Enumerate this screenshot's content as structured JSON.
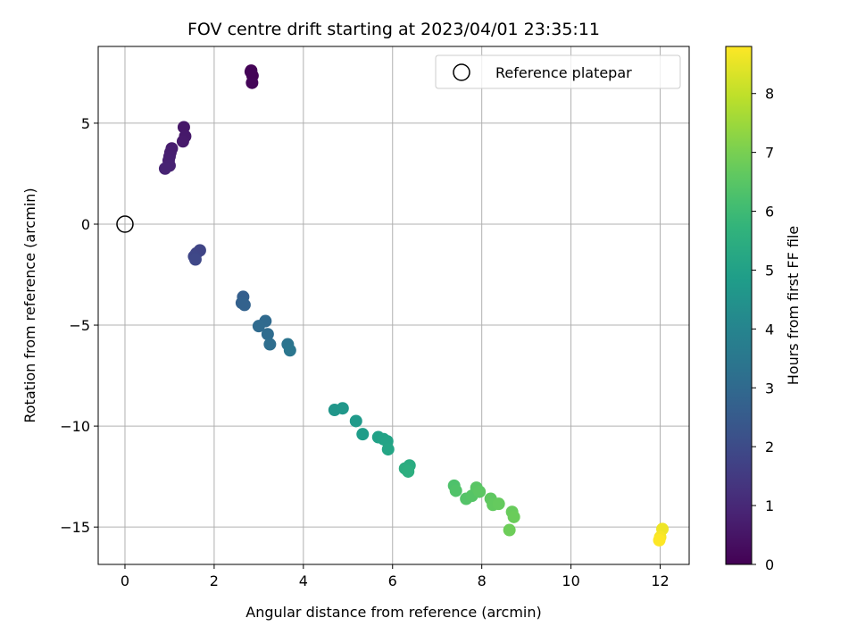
{
  "chart_data": {
    "type": "scatter",
    "title": "FOV centre drift starting at 2023/04/01 23:35:11",
    "xlabel": "Angular distance from reference (arcmin)",
    "ylabel": "Rotation from reference (arcmin)",
    "xlim": [
      -0.6,
      12.65
    ],
    "ylim": [
      -16.85,
      8.8
    ],
    "xticks": [
      0,
      2,
      4,
      6,
      8,
      10,
      12
    ],
    "yticks": [
      -15,
      -10,
      -5,
      0,
      5
    ],
    "grid": true,
    "legend": {
      "position": "upper right",
      "entries": [
        "Reference platepar"
      ]
    },
    "reference_point": {
      "label": "Reference platepar",
      "x": 0,
      "y": 0
    },
    "colorbar": {
      "label": "Hours from first FF file",
      "colormap": "viridis",
      "range": [
        0,
        8.8
      ],
      "ticks": [
        0,
        1,
        2,
        3,
        4,
        5,
        6,
        7,
        8
      ]
    },
    "points": [
      {
        "x": 2.83,
        "y": 7.6,
        "c": 0.0
      },
      {
        "x": 2.86,
        "y": 7.35,
        "c": 0.05
      },
      {
        "x": 2.85,
        "y": 7.0,
        "c": 0.1
      },
      {
        "x": 2.82,
        "y": 7.55,
        "c": 0.08
      },
      {
        "x": 1.32,
        "y": 4.8,
        "c": 0.55
      },
      {
        "x": 1.35,
        "y": 4.35,
        "c": 0.6
      },
      {
        "x": 1.3,
        "y": 4.1,
        "c": 0.62
      },
      {
        "x": 1.05,
        "y": 3.75,
        "c": 0.7
      },
      {
        "x": 1.02,
        "y": 3.55,
        "c": 0.72
      },
      {
        "x": 1.0,
        "y": 3.35,
        "c": 0.75
      },
      {
        "x": 0.98,
        "y": 3.15,
        "c": 0.78
      },
      {
        "x": 1.0,
        "y": 2.9,
        "c": 0.82
      },
      {
        "x": 0.9,
        "y": 2.75,
        "c": 0.85
      },
      {
        "x": 1.6,
        "y": -1.45,
        "c": 1.75
      },
      {
        "x": 1.68,
        "y": -1.3,
        "c": 1.8
      },
      {
        "x": 1.55,
        "y": -1.6,
        "c": 1.85
      },
      {
        "x": 1.58,
        "y": -1.75,
        "c": 1.9
      },
      {
        "x": 2.65,
        "y": -3.6,
        "c": 2.65
      },
      {
        "x": 2.62,
        "y": -3.9,
        "c": 2.7
      },
      {
        "x": 2.68,
        "y": -4.0,
        "c": 2.75
      },
      {
        "x": 3.15,
        "y": -4.8,
        "c": 3.0
      },
      {
        "x": 3.0,
        "y": -5.05,
        "c": 3.05
      },
      {
        "x": 3.2,
        "y": -5.45,
        "c": 3.1
      },
      {
        "x": 3.25,
        "y": -5.95,
        "c": 3.15
      },
      {
        "x": 3.65,
        "y": -5.95,
        "c": 3.4
      },
      {
        "x": 3.7,
        "y": -6.25,
        "c": 3.45
      },
      {
        "x": 4.7,
        "y": -9.2,
        "c": 4.6
      },
      {
        "x": 4.88,
        "y": -9.12,
        "c": 4.65
      },
      {
        "x": 5.18,
        "y": -9.75,
        "c": 4.75
      },
      {
        "x": 5.33,
        "y": -10.4,
        "c": 4.85
      },
      {
        "x": 5.68,
        "y": -10.55,
        "c": 5.0
      },
      {
        "x": 5.8,
        "y": -10.65,
        "c": 5.05
      },
      {
        "x": 5.88,
        "y": -10.75,
        "c": 5.1
      },
      {
        "x": 5.9,
        "y": -11.15,
        "c": 5.15
      },
      {
        "x": 6.38,
        "y": -11.95,
        "c": 5.4
      },
      {
        "x": 6.28,
        "y": -12.1,
        "c": 5.45
      },
      {
        "x": 6.35,
        "y": -12.25,
        "c": 5.5
      },
      {
        "x": 7.38,
        "y": -12.95,
        "c": 6.3
      },
      {
        "x": 7.42,
        "y": -13.2,
        "c": 6.35
      },
      {
        "x": 7.65,
        "y": -13.6,
        "c": 6.4
      },
      {
        "x": 7.78,
        "y": -13.45,
        "c": 6.45
      },
      {
        "x": 7.88,
        "y": -13.05,
        "c": 6.5
      },
      {
        "x": 7.95,
        "y": -13.25,
        "c": 6.55
      },
      {
        "x": 8.2,
        "y": -13.6,
        "c": 6.6
      },
      {
        "x": 8.25,
        "y": -13.9,
        "c": 6.65
      },
      {
        "x": 8.38,
        "y": -13.85,
        "c": 6.7
      },
      {
        "x": 8.68,
        "y": -14.25,
        "c": 6.75
      },
      {
        "x": 8.72,
        "y": -14.5,
        "c": 6.8
      },
      {
        "x": 8.62,
        "y": -15.15,
        "c": 6.85
      },
      {
        "x": 12.05,
        "y": -15.1,
        "c": 8.6
      },
      {
        "x": 12.0,
        "y": -15.5,
        "c": 8.7
      },
      {
        "x": 11.98,
        "y": -15.65,
        "c": 8.8
      }
    ]
  }
}
